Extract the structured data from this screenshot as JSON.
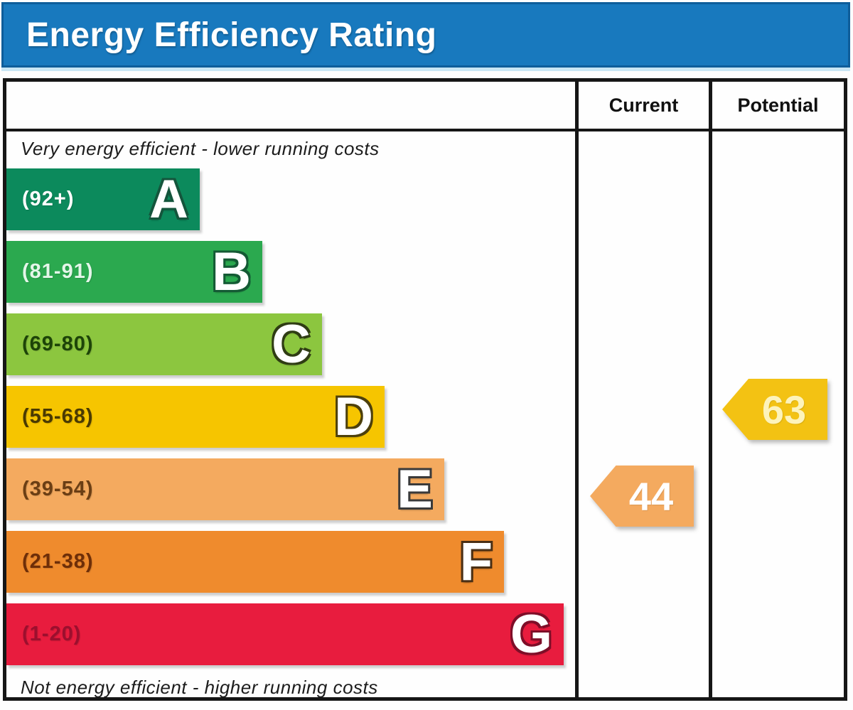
{
  "title": "Energy Efficiency Rating",
  "columns": {
    "current": "Current",
    "potential": "Potential"
  },
  "top_note": "Very energy efficient - lower running costs",
  "bottom_note": "Not energy efficient - higher running costs",
  "bands": [
    {
      "letter": "A",
      "range": "(92+)",
      "color": "#0c8a5c",
      "range_color": "#ffffff",
      "letter_outline": "#14553c",
      "width_pct": "34%"
    },
    {
      "letter": "B",
      "range": "(81-91)",
      "color": "#2ba94f",
      "range_color": "#e4f6e9",
      "letter_outline": "#145a34",
      "width_pct": "45%"
    },
    {
      "letter": "C",
      "range": "(69-80)",
      "color": "#8cc63f",
      "range_color": "#1d4408",
      "letter_outline": "#2f3c14",
      "width_pct": "55.5%"
    },
    {
      "letter": "D",
      "range": "(55-68)",
      "color": "#f6c500",
      "range_color": "#4a3a02",
      "letter_outline": "#4d400c",
      "width_pct": "66.5%"
    },
    {
      "letter": "E",
      "range": "(39-54)",
      "color": "#f4aa5f",
      "range_color": "#6b3e14",
      "letter_outline": "#533category",
      "width_pct": "77%"
    },
    {
      "letter": "F",
      "range": "(21-38)",
      "color": "#ef8b2d",
      "range_color": "#6e2e08",
      "letter_outline": "#4a2f14",
      "width_pct": "87.5%"
    },
    {
      "letter": "G",
      "range": "(1-20)",
      "color": "#e81c3e",
      "range_color": "#9c0f2e",
      "letter_outline": "#7e0e28",
      "width_pct": "98%"
    }
  ],
  "current": {
    "value": "44",
    "color": "#f4aa5f",
    "text_color": "#ffffff"
  },
  "potential": {
    "value": "63",
    "color": "#f3c213",
    "text_color": "#fdf3bb"
  },
  "chart_data": {
    "type": "bar",
    "title": "Energy Efficiency Rating",
    "categories": [
      "A",
      "B",
      "C",
      "D",
      "E",
      "F",
      "G"
    ],
    "band_ranges": [
      "92+",
      "81-91",
      "69-80",
      "55-68",
      "39-54",
      "21-38",
      "1-20"
    ],
    "bar_lengths_relative": [
      0.34,
      0.45,
      0.555,
      0.665,
      0.77,
      0.875,
      0.98
    ],
    "band_colors": [
      "#0c8a5c",
      "#2ba94f",
      "#8cc63f",
      "#f6c500",
      "#f4aa5f",
      "#ef8b2d",
      "#e81c3e"
    ],
    "markers": [
      {
        "name": "Current",
        "value": 44,
        "band": "E"
      },
      {
        "name": "Potential",
        "value": 63,
        "band": "D"
      }
    ],
    "annotations": [
      "Very energy efficient - lower running costs",
      "Not energy efficient - higher running costs"
    ],
    "legend_position": "none",
    "grid": false
  }
}
